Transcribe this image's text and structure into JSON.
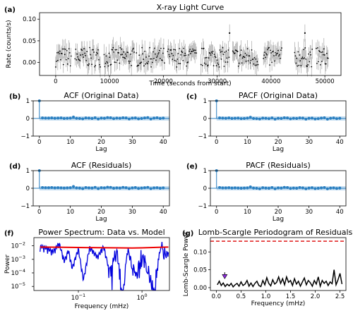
{
  "chart_data": [
    {
      "panel": "(a)",
      "type": "scatter",
      "title": "X-ray Light Curve",
      "xlabel": "Time (seconds from start)",
      "ylabel": "Rate (counts/s)",
      "xlim": [
        -3000,
        53000
      ],
      "ylim": [
        -0.03,
        0.115
      ],
      "xticks": [
        0,
        10000,
        20000,
        30000,
        40000,
        50000
      ],
      "xtick_labels": [
        "0",
        "10000",
        "20000",
        "30000",
        "40000",
        "50000"
      ],
      "yticks": [
        0.0,
        0.05,
        0.1
      ],
      "ytick_labels": [
        "0.00",
        "0.05",
        "0.10"
      ],
      "error_bars": true,
      "segments": [
        [
          0,
          2900
        ],
        [
          3600,
          8300
        ],
        [
          9000,
          14600
        ],
        [
          15000,
          20200
        ],
        [
          20800,
          26200
        ],
        [
          27000,
          32200
        ],
        [
          32900,
          37700
        ],
        [
          38600,
          42100
        ],
        [
          44400,
          47700
        ],
        [
          48400,
          50700
        ]
      ],
      "highlight_points": [
        {
          "x": 32300,
          "y": 0.068
        },
        {
          "x": 46300,
          "y": 0.068
        }
      ]
    },
    {
      "panel": "(b)",
      "type": "scatter",
      "title": "ACF (Original Data)",
      "xlabel": "Lag",
      "ylabel": "",
      "xlim": [
        -2,
        42
      ],
      "ylim": [
        -1,
        1
      ],
      "xticks": [
        0,
        10,
        20,
        30,
        40
      ],
      "yticks": [
        -1,
        0,
        1
      ],
      "confidence_band": 0.12,
      "lags": [
        0,
        1,
        2,
        3,
        4,
        5,
        6,
        7,
        8,
        9,
        10,
        11,
        12,
        13,
        14,
        15,
        16,
        17,
        18,
        19,
        20,
        21,
        22,
        23,
        24,
        25,
        26,
        27,
        28,
        29,
        30,
        31,
        32,
        33,
        34,
        35,
        36,
        37,
        38,
        39,
        40
      ],
      "values": [
        1.0,
        0.03,
        0.02,
        0.02,
        0.03,
        0.01,
        0.02,
        0.03,
        0.0,
        0.01,
        0.02,
        0.08,
        0.01,
        0.0,
        -0.02,
        0.03,
        0.02,
        0.0,
        0.04,
        -0.03,
        0.02,
        0.01,
        0.05,
        0.04,
        -0.01,
        0.02,
        0.01,
        0.04,
        0.03,
        -0.03,
        0.02,
        0.03,
        -0.02,
        0.0,
        0.03,
        0.05,
        -0.03,
        0.02,
        0.04,
        0.0,
        0.02
      ]
    },
    {
      "panel": "(c)",
      "type": "scatter",
      "title": "PACF (Original Data)",
      "xlabel": "Lag",
      "ylabel": "",
      "xlim": [
        -2,
        42
      ],
      "ylim": [
        -1,
        1
      ],
      "xticks": [
        0,
        10,
        20,
        30,
        40
      ],
      "yticks": [
        -1,
        0,
        1
      ],
      "confidence_band": 0.12,
      "lags": [
        0,
        1,
        2,
        3,
        4,
        5,
        6,
        7,
        8,
        9,
        10,
        11,
        12,
        13,
        14,
        15,
        16,
        17,
        18,
        19,
        20,
        21,
        22,
        23,
        24,
        25,
        26,
        27,
        28,
        29,
        30,
        31,
        32,
        33,
        34,
        35,
        36,
        37,
        38,
        39,
        40
      ],
      "values": [
        1.0,
        0.03,
        0.02,
        0.01,
        0.03,
        0.0,
        0.01,
        0.02,
        -0.01,
        0.0,
        0.02,
        0.07,
        0.0,
        -0.01,
        -0.03,
        0.02,
        0.01,
        -0.01,
        0.03,
        -0.04,
        0.01,
        0.0,
        0.04,
        0.03,
        -0.02,
        0.01,
        0.0,
        0.03,
        0.02,
        -0.04,
        0.01,
        0.02,
        -0.03,
        -0.01,
        0.02,
        0.04,
        -0.04,
        0.01,
        0.03,
        -0.01,
        0.01
      ]
    },
    {
      "panel": "(d)",
      "type": "scatter",
      "title": "ACF (Residuals)",
      "xlabel": "Lag",
      "ylabel": "",
      "xlim": [
        -2,
        42
      ],
      "ylim": [
        -1,
        1
      ],
      "xticks": [
        0,
        10,
        20,
        30,
        40
      ],
      "yticks": [
        -1,
        0,
        1
      ],
      "confidence_band": 0.12,
      "lags": [
        0,
        1,
        2,
        3,
        4,
        5,
        6,
        7,
        8,
        9,
        10,
        11,
        12,
        13,
        14,
        15,
        16,
        17,
        18,
        19,
        20,
        21,
        22,
        23,
        24,
        25,
        26,
        27,
        28,
        29,
        30,
        31,
        32,
        33,
        34,
        35,
        36,
        37,
        38,
        39,
        40
      ],
      "values": [
        1.0,
        0.04,
        0.03,
        0.03,
        0.04,
        0.02,
        0.03,
        0.02,
        0.01,
        0.02,
        0.03,
        0.1,
        0.02,
        0.01,
        -0.02,
        0.04,
        0.02,
        0.01,
        0.05,
        -0.02,
        0.03,
        0.02,
        0.06,
        0.05,
        0.0,
        0.02,
        0.01,
        0.05,
        0.03,
        -0.02,
        0.02,
        0.04,
        -0.01,
        0.01,
        0.03,
        0.05,
        -0.02,
        0.02,
        0.03,
        0.0,
        0.02
      ]
    },
    {
      "panel": "(e)",
      "type": "scatter",
      "title": "PACF (Residuals)",
      "xlabel": "Lag",
      "ylabel": "",
      "xlim": [
        -2,
        42
      ],
      "ylim": [
        -1,
        1
      ],
      "xticks": [
        0,
        10,
        20,
        30,
        40
      ],
      "yticks": [
        -1,
        0,
        1
      ],
      "confidence_band": 0.12,
      "lags": [
        0,
        1,
        2,
        3,
        4,
        5,
        6,
        7,
        8,
        9,
        10,
        11,
        12,
        13,
        14,
        15,
        16,
        17,
        18,
        19,
        20,
        21,
        22,
        23,
        24,
        25,
        26,
        27,
        28,
        29,
        30,
        31,
        32,
        33,
        34,
        35,
        36,
        37,
        38,
        39,
        40
      ],
      "values": [
        1.0,
        0.04,
        0.02,
        0.02,
        0.03,
        0.01,
        0.02,
        0.01,
        0.0,
        0.01,
        0.02,
        0.08,
        0.01,
        0.0,
        -0.03,
        0.03,
        0.01,
        0.0,
        0.04,
        -0.03,
        0.02,
        0.01,
        0.05,
        0.04,
        -0.01,
        0.01,
        0.0,
        0.04,
        0.02,
        -0.03,
        0.01,
        0.03,
        -0.02,
        0.0,
        0.02,
        0.04,
        -0.03,
        0.01,
        0.02,
        -0.01,
        0.01
      ]
    },
    {
      "panel": "(f)",
      "type": "line",
      "title": "Power Spectrum: Data vs. Model",
      "xlabel": "Frequency (mHz)",
      "ylabel": "Power",
      "xscale": "log",
      "yscale": "log",
      "xlim": [
        0.02,
        2.7
      ],
      "ylim": [
        5e-06,
        0.04
      ],
      "xticks": [
        0.1,
        1
      ],
      "xtick_labels": [
        "10",
        "10"
      ],
      "xtick_exponents": [
        "−1",
        "0"
      ],
      "yticks": [
        1e-05,
        0.0001,
        0.001,
        0.01
      ],
      "ytick_labels": [
        "10",
        "10",
        "10",
        "10"
      ],
      "ytick_exponents": [
        "−5",
        "−4",
        "−3",
        "−2"
      ],
      "series": [
        {
          "color": "#0000dd",
          "x_range": [
            0.025,
            2.6
          ],
          "n_points": 240,
          "envelope": [
            [
              0.025,
              0.012
            ],
            [
              0.03,
              0.01
            ],
            [
              0.04,
              0.005
            ],
            [
              0.05,
              0.02
            ],
            [
              0.06,
              0.001
            ],
            [
              0.07,
              0.006
            ],
            [
              0.08,
              0.0003
            ],
            [
              0.1,
              0.008
            ],
            [
              0.12,
              4e-05
            ],
            [
              0.15,
              0.01
            ],
            [
              0.2,
              0.002
            ],
            [
              0.25,
              0.012
            ],
            [
              0.3,
              0.0003
            ],
            [
              0.4,
              0.015
            ],
            [
              0.5,
              1e-05
            ],
            [
              0.6,
              0.015
            ],
            [
              0.8,
              0.0003
            ],
            [
              1.0,
              0.025
            ],
            [
              1.5,
              2e-05
            ],
            [
              2.0,
              0.03
            ],
            [
              2.6,
              0.005
            ]
          ]
        },
        {
          "color": "#ee0000",
          "x": [
            0.025,
            0.05,
            0.1,
            0.2,
            0.4,
            0.7,
            1.0,
            1.5,
            2.0,
            2.6
          ],
          "y": [
            0.008,
            0.0078,
            0.0075,
            0.0072,
            0.007,
            0.0068,
            0.007,
            0.0075,
            0.0078,
            0.008
          ]
        }
      ]
    },
    {
      "panel": "(g)",
      "type": "line",
      "title": "Lomb-Scargle Periodogram of Residuals",
      "xlabel": "Frequency (mHz)",
      "ylabel": "Lomb-Scargle Power",
      "xlim": [
        -0.12,
        2.62
      ],
      "ylim": [
        -0.008,
        0.14
      ],
      "xticks": [
        0.0,
        0.5,
        1.0,
        1.5,
        2.0,
        2.5
      ],
      "xtick_labels": [
        "0.0",
        "0.5",
        "1.0",
        "1.5",
        "2.0",
        "2.5"
      ],
      "yticks": [
        0.0,
        0.05,
        0.1
      ],
      "ytick_labels": [
        "0.00",
        "0.05",
        "0.10"
      ],
      "threshold": 0.13,
      "threshold_color": "#dd0000",
      "arrow": {
        "x": 0.17,
        "y_from": 0.043,
        "y_to": 0.025,
        "color": "#8e2be0"
      },
      "series": [
        {
          "color": "#000000",
          "x": [
            0.02,
            0.06,
            0.1,
            0.14,
            0.18,
            0.22,
            0.26,
            0.3,
            0.34,
            0.38,
            0.42,
            0.46,
            0.5,
            0.54,
            0.58,
            0.62,
            0.66,
            0.7,
            0.74,
            0.78,
            0.82,
            0.86,
            0.9,
            0.94,
            0.98,
            1.02,
            1.06,
            1.1,
            1.14,
            1.18,
            1.22,
            1.26,
            1.3,
            1.34,
            1.38,
            1.42,
            1.46,
            1.5,
            1.54,
            1.58,
            1.62,
            1.66,
            1.7,
            1.74,
            1.78,
            1.82,
            1.86,
            1.9,
            1.94,
            1.98,
            2.02,
            2.06,
            2.1,
            2.14,
            2.18,
            2.22,
            2.26,
            2.3,
            2.34,
            2.38,
            2.42,
            2.46,
            2.5,
            2.54
          ],
          "y": [
            0.008,
            0.018,
            0.006,
            0.013,
            0.003,
            0.01,
            0.005,
            0.012,
            0.002,
            0.008,
            0.012,
            0.004,
            0.016,
            0.006,
            0.01,
            0.02,
            0.004,
            0.013,
            0.003,
            0.012,
            0.018,
            0.006,
            0.003,
            0.02,
            0.008,
            0.028,
            0.012,
            0.005,
            0.022,
            0.01,
            0.015,
            0.03,
            0.012,
            0.025,
            0.008,
            0.03,
            0.015,
            0.02,
            0.006,
            0.025,
            0.01,
            0.018,
            0.004,
            0.016,
            0.027,
            0.008,
            0.02,
            0.014,
            0.004,
            0.02,
            0.01,
            0.03,
            0.004,
            0.02,
            0.012,
            0.018,
            0.006,
            0.016,
            0.011,
            0.05,
            0.008,
            0.022,
            0.04,
            0.01
          ]
        }
      ]
    }
  ],
  "panel_labels": [
    "(a)",
    "(b)",
    "(c)",
    "(d)",
    "(e)",
    "(f)",
    "(g)"
  ],
  "colors": {
    "acf_marker": "#2a7fc0",
    "acf_band": "#bcd8ee",
    "spectrum": "#0000dd",
    "model": "#ee0000"
  }
}
